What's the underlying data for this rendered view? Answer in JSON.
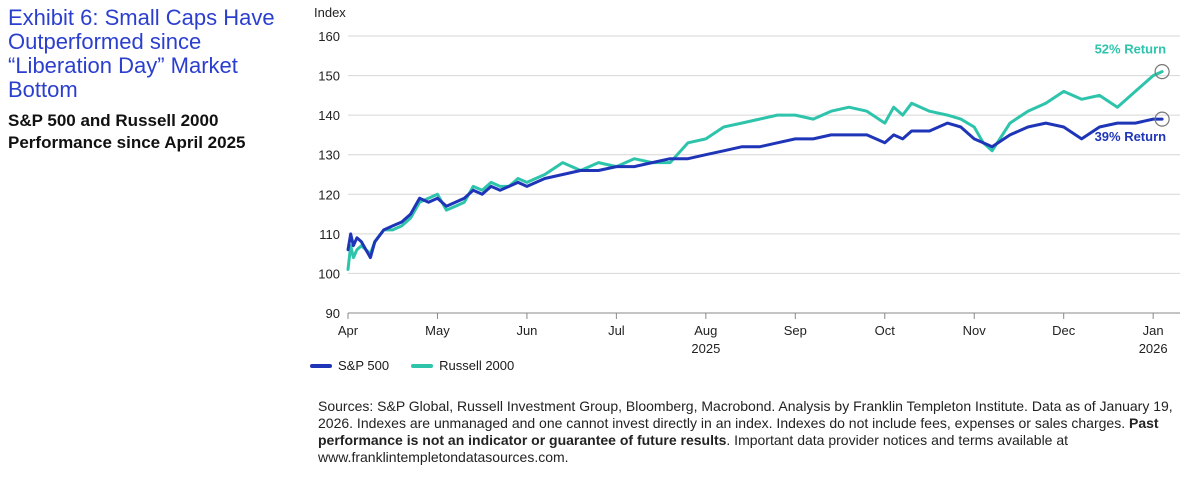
{
  "header": {
    "title": "Exhibit 6: Small Caps Have Outperformed since “Liberation Day” Market Bottom",
    "subtitle": "S&P 500 and Russell 2000 Performance since April 2025"
  },
  "colors": {
    "sp500": "#1f35b8",
    "russell": "#2ec4ac",
    "title": "#2b3fcf",
    "grid": "#d6d6d6"
  },
  "chart_data": {
    "type": "line",
    "ylabel": "Index",
    "ylim": [
      90,
      160
    ],
    "yticks": [
      90,
      100,
      110,
      120,
      130,
      140,
      150,
      160
    ],
    "xticks": [
      {
        "label": "Apr",
        "year": ""
      },
      {
        "label": "May",
        "year": ""
      },
      {
        "label": "Jun",
        "year": ""
      },
      {
        "label": "Jul",
        "year": ""
      },
      {
        "label": "Aug",
        "year": "2025"
      },
      {
        "label": "Sep",
        "year": ""
      },
      {
        "label": "Oct",
        "year": ""
      },
      {
        "label": "Nov",
        "year": ""
      },
      {
        "label": "Dec",
        "year": ""
      },
      {
        "label": "Jan",
        "year": "2026"
      }
    ],
    "grid": true,
    "series": [
      {
        "name": "S&P 500",
        "color": "#1f35b8",
        "x": [
          0,
          0.03,
          0.06,
          0.1,
          0.15,
          0.2,
          0.25,
          0.3,
          0.4,
          0.5,
          0.6,
          0.7,
          0.8,
          0.9,
          1.0,
          1.1,
          1.2,
          1.3,
          1.4,
          1.5,
          1.6,
          1.7,
          1.8,
          1.9,
          2.0,
          2.2,
          2.4,
          2.6,
          2.8,
          3.0,
          3.2,
          3.4,
          3.6,
          3.8,
          4.0,
          4.2,
          4.4,
          4.6,
          4.8,
          5.0,
          5.2,
          5.4,
          5.6,
          5.8,
          6.0,
          6.1,
          6.2,
          6.3,
          6.5,
          6.7,
          6.85,
          7.0,
          7.1,
          7.2,
          7.4,
          7.6,
          7.8,
          8.0,
          8.2,
          8.4,
          8.6,
          8.8,
          9.0,
          9.1
        ],
        "values": [
          106,
          110,
          107,
          109,
          108,
          106,
          104,
          108,
          111,
          112,
          113,
          115,
          119,
          118,
          119,
          117,
          118,
          119,
          121,
          120,
          122,
          121,
          122,
          123,
          122,
          124,
          125,
          126,
          126,
          127,
          127,
          128,
          129,
          129,
          130,
          131,
          132,
          132,
          133,
          134,
          134,
          135,
          135,
          135,
          133,
          135,
          134,
          136,
          136,
          138,
          137,
          134,
          133,
          132,
          135,
          137,
          138,
          137,
          134,
          137,
          138,
          138,
          139,
          139
        ]
      },
      {
        "name": "Russell 2000",
        "color": "#2ec4ac",
        "x": [
          0,
          0.03,
          0.06,
          0.1,
          0.15,
          0.2,
          0.25,
          0.3,
          0.4,
          0.5,
          0.6,
          0.7,
          0.8,
          0.9,
          1.0,
          1.1,
          1.2,
          1.3,
          1.4,
          1.5,
          1.6,
          1.7,
          1.8,
          1.9,
          2.0,
          2.2,
          2.4,
          2.6,
          2.8,
          3.0,
          3.2,
          3.4,
          3.6,
          3.8,
          4.0,
          4.2,
          4.4,
          4.6,
          4.8,
          5.0,
          5.2,
          5.4,
          5.6,
          5.8,
          6.0,
          6.1,
          6.2,
          6.3,
          6.5,
          6.7,
          6.85,
          7.0,
          7.1,
          7.2,
          7.4,
          7.6,
          7.8,
          8.0,
          8.2,
          8.4,
          8.6,
          8.8,
          9.0,
          9.1
        ],
        "values": [
          101,
          107,
          104,
          106,
          107,
          106,
          105,
          108,
          111,
          111,
          112,
          114,
          118,
          119,
          120,
          116,
          117,
          118,
          122,
          121,
          123,
          122,
          122,
          124,
          123,
          125,
          128,
          126,
          128,
          127,
          129,
          128,
          128,
          133,
          134,
          137,
          138,
          139,
          140,
          140,
          139,
          141,
          142,
          141,
          138,
          142,
          140,
          143,
          141,
          140,
          139,
          137,
          133,
          131,
          138,
          141,
          143,
          146,
          144,
          145,
          142,
          146,
          150,
          151
        ]
      }
    ],
    "annotations": [
      {
        "text": "52% Return",
        "series": "Russell 2000",
        "x": 9.1,
        "y": 151
      },
      {
        "text": "39% Return",
        "series": "S&P 500",
        "x": 9.1,
        "y": 139
      }
    ],
    "legend": "bottom-left"
  },
  "legend": {
    "items": [
      {
        "label": "S&P 500"
      },
      {
        "label": "Russell 2000"
      }
    ]
  },
  "sources": {
    "part1": "Sources: S&P Global, Russell Investment Group, Bloomberg, Macrobond. Analysis by Franklin Templeton Institute. Data as of January 19, 2026. Indexes are unmanaged and one cannot invest directly in an index. Indexes do not include fees, expenses or sales charges. ",
    "bold": "Past performance is not an indicator or guarantee of future results",
    "part2": ". Important data provider notices and terms available at www.franklintempletondatasources.com."
  }
}
